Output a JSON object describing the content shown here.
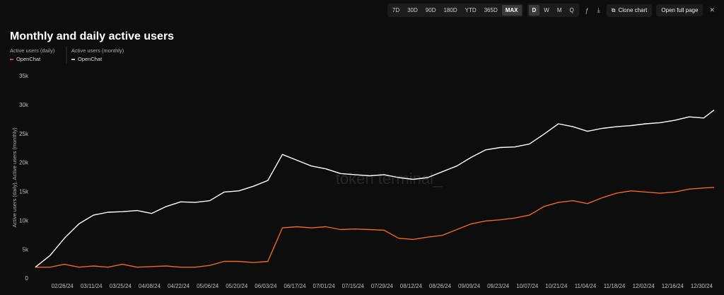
{
  "toolbar": {
    "ranges": [
      "7D",
      "30D",
      "90D",
      "180D",
      "YTD",
      "365D",
      "MAX"
    ],
    "intervals": [
      "D",
      "W",
      "M",
      "Q"
    ],
    "clone": "Clone chart",
    "open": "Open full page"
  },
  "chart_data": {
    "type": "line",
    "title": "Monthly and daily active users",
    "y_label": "Active users (daily), Active users (monthly)",
    "watermark": "token terminal_",
    "x": [
      "02/13/24",
      "02/20/24",
      "02/27/24",
      "03/05/24",
      "03/12/24",
      "03/19/24",
      "03/26/24",
      "04/02/24",
      "04/09/24",
      "04/16/24",
      "04/23/24",
      "04/30/24",
      "05/07/24",
      "05/14/24",
      "05/21/24",
      "05/28/24",
      "06/04/24",
      "06/11/24",
      "06/18/24",
      "06/25/24",
      "07/02/24",
      "07/09/24",
      "07/16/24",
      "07/23/24",
      "07/30/24",
      "08/06/24",
      "08/13/24",
      "08/20/24",
      "08/27/24",
      "09/03/24",
      "09/10/24",
      "09/17/24",
      "09/24/24",
      "10/01/24",
      "10/08/24",
      "10/15/24",
      "10/22/24",
      "10/29/24",
      "11/05/24",
      "11/12/24",
      "11/19/24",
      "11/26/24",
      "12/03/24",
      "12/10/24",
      "12/17/24",
      "12/24/24",
      "12/31/24",
      "01/05/25"
    ],
    "series": [
      {
        "name": "OpenChat",
        "group": "Active users (daily)",
        "color": "#f26522",
        "values": [
          2000,
          2000,
          2500,
          2000,
          2200,
          2000,
          2500,
          2000,
          2100,
          2200,
          2000,
          2000,
          2300,
          3000,
          3000,
          2800,
          3000,
          8800,
          9000,
          8800,
          9000,
          8500,
          8600,
          8500,
          8400,
          7000,
          6800,
          7200,
          7500,
          8500,
          9500,
          10000,
          10200,
          10500,
          11000,
          12500,
          13200,
          13500,
          13000,
          14000,
          14800,
          15200,
          15000,
          14800,
          15000,
          15500,
          15700,
          15800
        ]
      },
      {
        "name": "OpenChat",
        "group": "Active users (monthly)",
        "color": "#ffffff",
        "values": [
          2000,
          4000,
          7000,
          9500,
          11000,
          11500,
          11600,
          11800,
          11300,
          12500,
          13300,
          13200,
          13500,
          15000,
          15200,
          16000,
          17000,
          21500,
          20500,
          19500,
          19000,
          18200,
          18000,
          17800,
          18000,
          17500,
          17200,
          17500,
          18500,
          19500,
          21000,
          22300,
          22700,
          22800,
          23300,
          25000,
          26800,
          26300,
          25500,
          26000,
          26300,
          26500,
          26800,
          27000,
          27400,
          28000,
          27800,
          29200
        ]
      }
    ],
    "xlim": [
      "02/13/24",
      "01/05/25"
    ],
    "xticks": [
      "02/26/24",
      "03/11/24",
      "03/25/24",
      "04/08/24",
      "04/22/24",
      "05/06/24",
      "05/20/24",
      "06/03/24",
      "06/17/24",
      "07/01/24",
      "07/15/24",
      "07/29/24",
      "08/12/24",
      "08/26/24",
      "09/09/24",
      "09/23/24",
      "10/07/24",
      "10/21/24",
      "11/04/24",
      "11/18/24",
      "12/02/24",
      "12/16/24",
      "12/30/24"
    ],
    "ylim": [
      0,
      35000
    ],
    "yticks": [
      {
        "value": 0,
        "label": "0"
      },
      {
        "value": 5000,
        "label": "5k"
      },
      {
        "value": 10000,
        "label": "10k"
      },
      {
        "value": 15000,
        "label": "15k"
      },
      {
        "value": 20000,
        "label": "20k"
      },
      {
        "value": 25000,
        "label": "25k"
      },
      {
        "value": 30000,
        "label": "30k"
      },
      {
        "value": 35000,
        "label": "35k"
      }
    ],
    "grid": false
  }
}
